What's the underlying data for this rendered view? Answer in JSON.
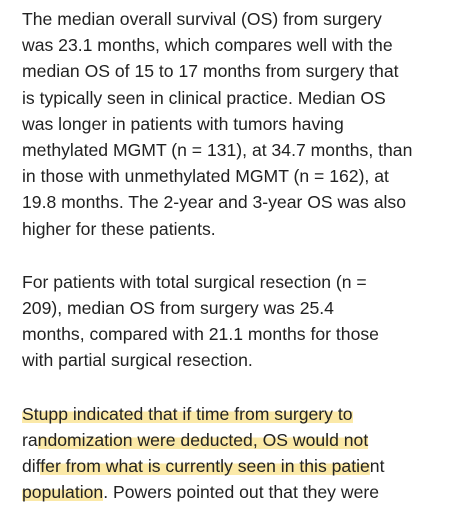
{
  "highlight_color": "#fbe9a8",
  "paragraphs": [
    {
      "lines": [
        {
          "segments": [
            {
              "text": "The median overall survival (OS) from surgery",
              "highlight": false
            }
          ]
        },
        {
          "segments": [
            {
              "text": "was 23.1 months, which compares well with the",
              "highlight": false
            }
          ]
        },
        {
          "segments": [
            {
              "text": "median OS of 15 to 17 months from surgery that",
              "highlight": false
            }
          ]
        },
        {
          "segments": [
            {
              "text": "is typically seen in clinical practice. Median OS",
              "highlight": false
            }
          ]
        },
        {
          "segments": [
            {
              "text": "was longer in patients with tumors having",
              "highlight": false
            }
          ]
        },
        {
          "segments": [
            {
              "text": "methylated MGMT (n = 131), at 34.7 months, than",
              "highlight": false
            }
          ]
        },
        {
          "segments": [
            {
              "text": "in those with unmethylated MGMT (n = 162), at",
              "highlight": false
            }
          ]
        },
        {
          "segments": [
            {
              "text": "19.8 months. The 2-year and 3-year OS was also",
              "highlight": false
            }
          ]
        },
        {
          "segments": [
            {
              "text": "higher for these patients.",
              "highlight": false
            }
          ]
        }
      ]
    },
    {
      "lines": [
        {
          "segments": [
            {
              "text": "For patients with total surgical resection (n =",
              "highlight": false
            }
          ]
        },
        {
          "segments": [
            {
              "text": "209), median OS from surgery was 25.4",
              "highlight": false
            }
          ]
        },
        {
          "segments": [
            {
              "text": "months, compared with 21.1 months for those",
              "highlight": false
            }
          ]
        },
        {
          "segments": [
            {
              "text": "with partial surgical resection.",
              "highlight": false
            }
          ]
        }
      ]
    },
    {
      "lines": [
        {
          "segments": [
            {
              "text": "Stupp indicated that if time from surgery to",
              "highlight": true
            }
          ]
        },
        {
          "segments": [
            {
              "text": "ra",
              "highlight": false
            },
            {
              "text": "ndomization were deducted, OS would not",
              "highlight": true
            }
          ]
        },
        {
          "segments": [
            {
              "text": "dif",
              "highlight": false
            },
            {
              "text": "fer from what is currently seen in this patie",
              "highlight": true
            },
            {
              "text": "nt",
              "highlight": false
            }
          ]
        },
        {
          "segments": [
            {
              "text": "population",
              "highlight": true
            },
            {
              "text": ". Powers pointed out that they were",
              "highlight": false
            }
          ]
        }
      ]
    }
  ]
}
